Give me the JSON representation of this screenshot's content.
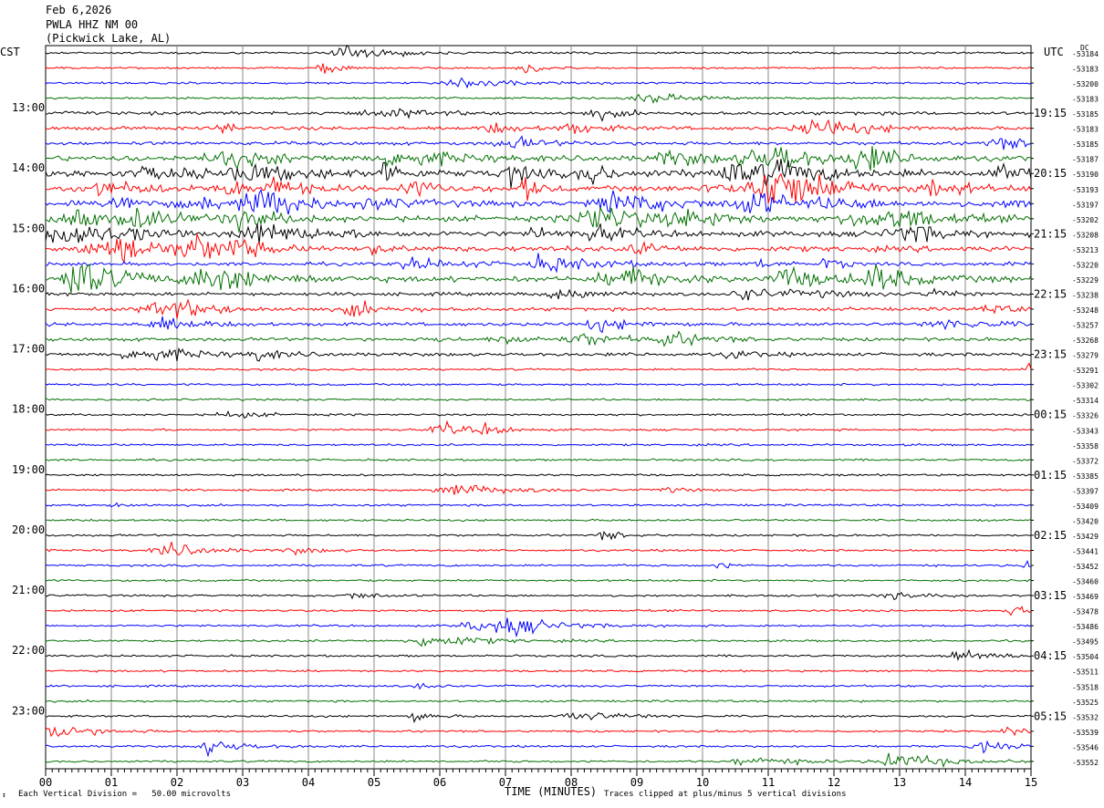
{
  "header": {
    "date": "Feb 6,2026",
    "station": "PWLA HHZ NM 00",
    "location": "(Pickwick Lake, AL)"
  },
  "left_tz": "CST",
  "right_tz": "UTC",
  "dc_label": "DC",
  "footer": {
    "scale": "Each Vertical Division =   50.00 microvolts",
    "xlabel": "TIME (MINUTES)",
    "clip": "Traces clipped at plus/minus 5 vertical divisions"
  },
  "colors": [
    "#000000",
    "#ff0000",
    "#0000ff",
    "#007000"
  ],
  "chart_data": {
    "type": "line",
    "x_ticks": [
      "00",
      "01",
      "02",
      "03",
      "04",
      "05",
      "06",
      "07",
      "08",
      "09",
      "10",
      "11",
      "12",
      "13",
      "14",
      "15"
    ],
    "xlim": [
      0,
      15
    ],
    "left_hour_labels": [
      "13:00",
      "14:00",
      "15:00",
      "16:00",
      "17:00",
      "18:00",
      "19:00",
      "20:00",
      "21:00",
      "22:00",
      "23:00"
    ],
    "right_hour_labels": [
      "19:15",
      "20:15",
      "21:15",
      "22:15",
      "23:15",
      "00:15",
      "01:15",
      "02:15",
      "03:15",
      "04:15",
      "05:15"
    ],
    "dc_offsets": [
      "-53184",
      "-53183",
      "-53200",
      "-53183",
      "-53185",
      "-53183",
      "-53185",
      "-53187",
      "-53190",
      "-53193",
      "-53197",
      "-53202",
      "-53208",
      "-53213",
      "-53220",
      "-53229",
      "-53238",
      "-53248",
      "-53257",
      "-53268",
      "-53279",
      "-53291",
      "-53302",
      "-53314",
      "-53326",
      "-53343",
      "-53358",
      "-53372",
      "-53385",
      "-53397",
      "-53409",
      "-53420",
      "-53429",
      "-53441",
      "-53452",
      "-53460",
      "-53469",
      "-53478",
      "-53486",
      "-53495",
      "-53504",
      "-53511",
      "-53518",
      "-53525",
      "-53532",
      "-53539",
      "-53546",
      "-53552"
    ],
    "activity": [
      1,
      1,
      1,
      1,
      2,
      2,
      2,
      3,
      4,
      3,
      3,
      3,
      3,
      3,
      2,
      3,
      2,
      2,
      2,
      2,
      2,
      1,
      1,
      1,
      1,
      1,
      1,
      1,
      1,
      1,
      1,
      1,
      1,
      1,
      1,
      1,
      1,
      1,
      1,
      1,
      1,
      1,
      1,
      1,
      1,
      1,
      1,
      1
    ]
  }
}
